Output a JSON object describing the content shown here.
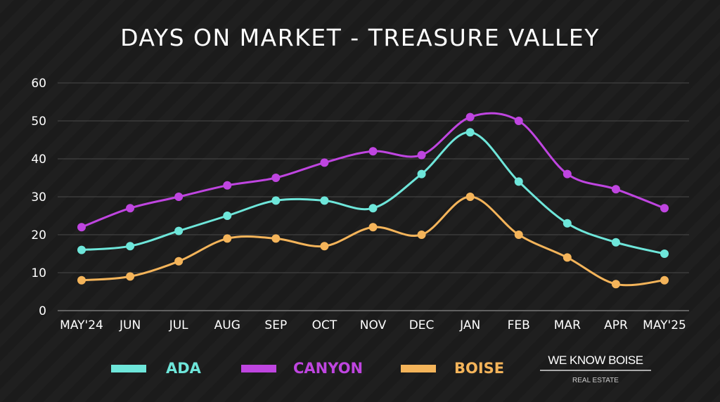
{
  "chart_data": {
    "type": "line",
    "title": "DAYS ON MARKET - TREASURE VALLEY",
    "categories": [
      "MAY'24",
      "JUN",
      "JUL",
      "AUG",
      "SEP",
      "OCT",
      "NOV",
      "DEC",
      "JAN",
      "FEB",
      "MAR",
      "APR",
      "MAY'25"
    ],
    "ylim": [
      0,
      60
    ],
    "yticks": [
      0,
      10,
      20,
      30,
      40,
      50,
      60
    ],
    "grid": true,
    "legend_placement": "bottom",
    "series": [
      {
        "name": "ADA",
        "color": "#6ee6da",
        "values": [
          16,
          17,
          21,
          25,
          29,
          29,
          27,
          36,
          47,
          34,
          23,
          18,
          15
        ]
      },
      {
        "name": "CANYON",
        "color": "#bf45e0",
        "values": [
          22,
          27,
          30,
          33,
          35,
          39,
          42,
          41,
          51,
          50,
          36,
          32,
          27
        ]
      },
      {
        "name": "BOISE",
        "color": "#f4b45a",
        "values": [
          8,
          9,
          13,
          19,
          19,
          17,
          22,
          20,
          30,
          20,
          14,
          7,
          8
        ]
      }
    ]
  },
  "logo": {
    "main": "WE KNOW BOISE",
    "sub": "REAL ESTATE"
  }
}
